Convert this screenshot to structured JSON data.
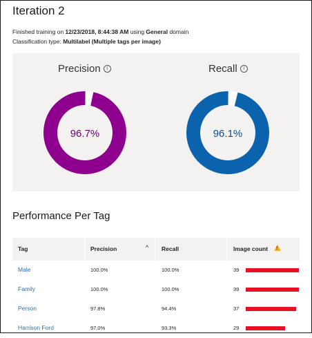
{
  "page": {
    "title": "Iteration 2",
    "info_line1": {
      "prefix": "Finished training on ",
      "date": "12/23/2018, 8:44:38 AM",
      "middle": " using ",
      "domain": "General",
      "suffix": " domain"
    },
    "info_line2": {
      "prefix": "Classification type: ",
      "type": "Multilabel (Multiple tags per image)"
    }
  },
  "metrics": {
    "precision": {
      "label": "Precision",
      "value_text": "96.7%",
      "value": 96.7,
      "color": "#8e008e",
      "text_color": "#6b006b"
    },
    "recall": {
      "label": "Recall",
      "value_text": "96.1%",
      "value": 96.1,
      "color": "#0b62ad",
      "text_color": "#0b4f8a"
    },
    "info_glyph": "i"
  },
  "performance": {
    "title": "Performance Per Tag",
    "columns": {
      "tag": "Tag",
      "precision": "Precision",
      "recall": "Recall",
      "image_count": "Image count"
    },
    "sort_glyph": "^",
    "warning_glyph": "!",
    "bar_color": "#e81123",
    "rows": [
      {
        "tag": "Male",
        "precision": "100.0%",
        "recall": "100.0%",
        "count": "39",
        "count_value": 39
      },
      {
        "tag": "Family",
        "precision": "100.0%",
        "recall": "100.0%",
        "count": "39",
        "count_value": 39
      },
      {
        "tag": "Person",
        "precision": "97.8%",
        "recall": "94.4%",
        "count": "37",
        "count_value": 37
      },
      {
        "tag": "Harrison Ford",
        "precision": "97.0%",
        "recall": "93.3%",
        "count": "29",
        "count_value": 29
      }
    ]
  }
}
